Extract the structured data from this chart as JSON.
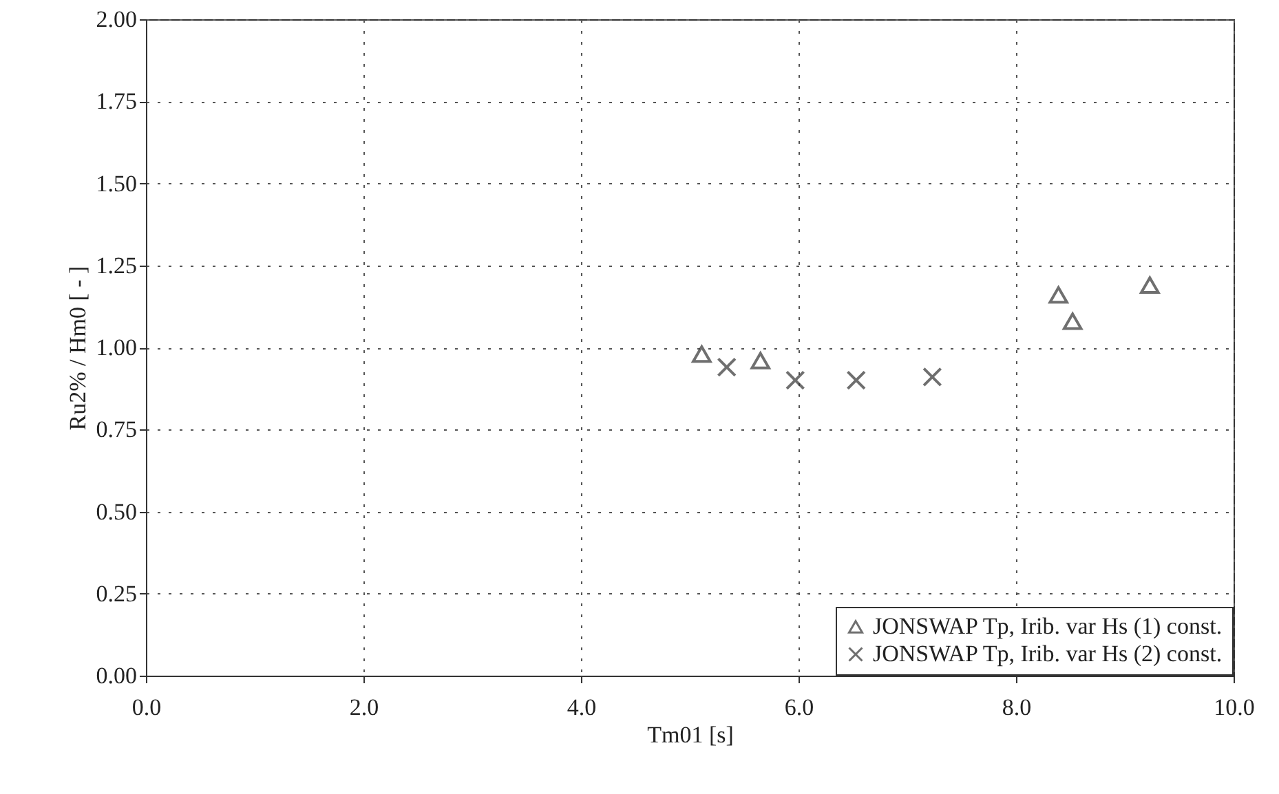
{
  "chart_data": {
    "type": "scatter",
    "xlabel": "Tm01 [s]",
    "ylabel": "Ru2% / Hm0 [ - ]",
    "xlim": [
      0,
      10
    ],
    "ylim": [
      0,
      2
    ],
    "xticks": [
      {
        "value": 0,
        "label": "0.0"
      },
      {
        "value": 2,
        "label": "2.0"
      },
      {
        "value": 4,
        "label": "4.0"
      },
      {
        "value": 6,
        "label": "6.0"
      },
      {
        "value": 8,
        "label": "8.0"
      },
      {
        "value": 10,
        "label": "10.0"
      }
    ],
    "yticks": [
      {
        "value": 0,
        "label": "0.00"
      },
      {
        "value": 0.25,
        "label": "0.25"
      },
      {
        "value": 0.5,
        "label": "0.50"
      },
      {
        "value": 0.75,
        "label": "0.75"
      },
      {
        "value": 1,
        "label": "1.00"
      },
      {
        "value": 1.25,
        "label": "1.25"
      },
      {
        "value": 1.5,
        "label": "1.50"
      },
      {
        "value": 1.75,
        "label": "1.75"
      },
      {
        "value": 2,
        "label": "2.00"
      }
    ],
    "grid": true,
    "legend": "bottom right",
    "series": [
      {
        "name": "JONSWAP Tp, Irib. var Hs (1) const.",
        "color": "#333333",
        "marker": "triangle",
        "x": [
          5.11,
          5.65,
          8.39,
          8.52,
          9.23
        ],
        "values": [
          0.98,
          0.96,
          1.16,
          1.08,
          1.19
        ]
      },
      {
        "name": "JONSWAP Tp, Irib. var Hs (2) const.",
        "color": "#333333",
        "marker": "cross",
        "x": [
          5.34,
          5.97,
          6.53,
          7.23
        ],
        "values": [
          0.94,
          0.9,
          0.9,
          0.91
        ]
      }
    ]
  }
}
